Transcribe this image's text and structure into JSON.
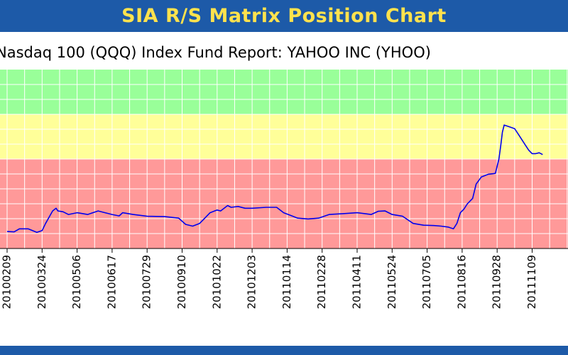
{
  "header": {
    "title": "SIA R/S Matrix Position Chart"
  },
  "subtitle": "Nasdaq 100 (QQQ) Index Fund Report: YAHOO INC (YHOO)",
  "colors": {
    "header_bg": "#1d5aa8",
    "title_text": "#ffe24d",
    "zone_green": "#99ff99",
    "zone_yellow": "#ffff99",
    "zone_red": "#ff9999",
    "grid": "#ffffff",
    "line": "#0000ee"
  },
  "chart_data": {
    "type": "line",
    "grid": true,
    "zones": [
      {
        "color": "green",
        "from": 0.0,
        "to": 0.25
      },
      {
        "color": "yellow",
        "from": 0.25,
        "to": 0.5
      },
      {
        "color": "red",
        "from": 0.5,
        "to": 1.0
      }
    ],
    "x_ticks": [
      "20100209",
      "20100324",
      "20100506",
      "20100617",
      "20100729",
      "20100910",
      "20101022",
      "20101203",
      "20110114",
      "20110228",
      "20110411",
      "20110524",
      "20110705",
      "20110816",
      "20110928",
      "20111109"
    ],
    "series": [
      {
        "values": [
          [
            0.0,
            0.905
          ],
          [
            0.2,
            0.907
          ],
          [
            0.35,
            0.89
          ],
          [
            0.6,
            0.89
          ],
          [
            0.85,
            0.91
          ],
          [
            1.0,
            0.9
          ],
          [
            1.1,
            0.86
          ],
          [
            1.3,
            0.79
          ],
          [
            1.4,
            0.775
          ],
          [
            1.45,
            0.79
          ],
          [
            1.6,
            0.795
          ],
          [
            1.75,
            0.81
          ],
          [
            2.0,
            0.8
          ],
          [
            2.3,
            0.81
          ],
          [
            2.6,
            0.79
          ],
          [
            3.0,
            0.81
          ],
          [
            3.2,
            0.818
          ],
          [
            3.3,
            0.8
          ],
          [
            3.6,
            0.81
          ],
          [
            4.0,
            0.82
          ],
          [
            4.5,
            0.822
          ],
          [
            4.9,
            0.83
          ],
          [
            5.1,
            0.865
          ],
          [
            5.3,
            0.875
          ],
          [
            5.5,
            0.86
          ],
          [
            5.6,
            0.84
          ],
          [
            5.8,
            0.8
          ],
          [
            6.0,
            0.785
          ],
          [
            6.1,
            0.79
          ],
          [
            6.3,
            0.76
          ],
          [
            6.4,
            0.77
          ],
          [
            6.6,
            0.765
          ],
          [
            6.8,
            0.775
          ],
          [
            7.0,
            0.775
          ],
          [
            7.4,
            0.77
          ],
          [
            7.7,
            0.77
          ],
          [
            7.9,
            0.8
          ],
          [
            8.1,
            0.815
          ],
          [
            8.3,
            0.83
          ],
          [
            8.6,
            0.835
          ],
          [
            8.9,
            0.83
          ],
          [
            9.2,
            0.81
          ],
          [
            9.6,
            0.805
          ],
          [
            10.0,
            0.8
          ],
          [
            10.4,
            0.81
          ],
          [
            10.6,
            0.792
          ],
          [
            10.8,
            0.79
          ],
          [
            11.0,
            0.81
          ],
          [
            11.3,
            0.82
          ],
          [
            11.6,
            0.86
          ],
          [
            11.9,
            0.87
          ],
          [
            12.2,
            0.872
          ],
          [
            12.4,
            0.875
          ],
          [
            12.6,
            0.88
          ],
          [
            12.75,
            0.89
          ],
          [
            12.85,
            0.86
          ],
          [
            12.95,
            0.8
          ],
          [
            13.05,
            0.78
          ],
          [
            13.15,
            0.75
          ],
          [
            13.3,
            0.72
          ],
          [
            13.4,
            0.64
          ],
          [
            13.55,
            0.6
          ],
          [
            13.75,
            0.585
          ],
          [
            13.95,
            0.58
          ],
          [
            14.05,
            0.5
          ],
          [
            14.1,
            0.43
          ],
          [
            14.15,
            0.35
          ],
          [
            14.2,
            0.31
          ],
          [
            14.35,
            0.32
          ],
          [
            14.5,
            0.33
          ],
          [
            14.6,
            0.36
          ],
          [
            14.8,
            0.42
          ],
          [
            14.9,
            0.45
          ],
          [
            15.0,
            0.47
          ],
          [
            15.1,
            0.47
          ],
          [
            15.2,
            0.465
          ],
          [
            15.3,
            0.475
          ]
        ]
      }
    ]
  }
}
